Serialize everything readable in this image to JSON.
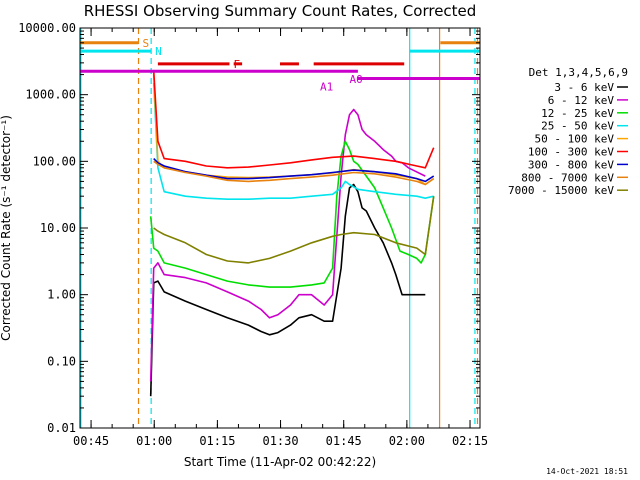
{
  "chart_data": {
    "type": "line",
    "title": "RHESSI Observing Summary Count Rates, Corrected",
    "xlabel": "Start Time (11-Apr-02 00:42:22)",
    "ylabel": "Corrected Count Rate (s⁻¹ detector⁻¹)",
    "yscale": "log",
    "ylim": [
      0.01,
      10000
    ],
    "xlim_minutes_since_start": [
      0,
      95
    ],
    "x_ticks": [
      {
        "label": "00:45",
        "m": 2.63
      },
      {
        "label": "01:00",
        "m": 17.63
      },
      {
        "label": "01:15",
        "m": 32.63
      },
      {
        "label": "01:30",
        "m": 47.63
      },
      {
        "label": "01:45",
        "m": 62.63
      },
      {
        "label": "02:00",
        "m": 77.63
      },
      {
        "label": "02:15",
        "m": 92.63
      }
    ],
    "y_ticks": [
      {
        "label": "0.01",
        "v": 0.01
      },
      {
        "label": "0.10",
        "v": 0.1
      },
      {
        "label": "1.00",
        "v": 1
      },
      {
        "label": "10.00",
        "v": 10
      },
      {
        "label": "100.00",
        "v": 100
      },
      {
        "label": "1000.00",
        "v": 1000
      },
      {
        "label": "10000.00",
        "v": 10000
      }
    ],
    "legend_title": "Det 1,3,4,5,6,9",
    "legend_position": "right",
    "series": [
      {
        "name": "3 - 6 keV",
        "color": "#000000",
        "x": [
          16.8,
          17.5,
          18.5,
          20,
          25,
          30,
          35,
          40,
          43,
          45,
          47,
          50,
          52,
          55,
          58,
          60,
          62,
          63,
          64,
          65,
          66,
          67,
          68,
          70,
          72,
          74,
          75,
          76.5,
          78,
          82
        ],
        "y": [
          0.03,
          1.5,
          1.6,
          1.1,
          0.8,
          0.6,
          0.45,
          0.35,
          0.28,
          0.25,
          0.27,
          0.35,
          0.45,
          0.5,
          0.4,
          0.4,
          2.5,
          15,
          40,
          45,
          35,
          20,
          18,
          10,
          6,
          3,
          2,
          1,
          1,
          1
        ]
      },
      {
        "name": "6 - 12 keV",
        "color": "#cc00cc",
        "x": [
          16.8,
          17.5,
          18.5,
          20,
          25,
          30,
          35,
          40,
          43,
          45,
          47,
          50,
          52,
          55,
          58,
          60,
          62,
          63,
          64,
          65,
          66,
          67,
          68,
          70,
          72,
          74,
          75,
          76.5,
          78,
          82
        ],
        "y": [
          0.05,
          2.5,
          3.0,
          2.0,
          1.8,
          1.5,
          1.1,
          0.8,
          0.6,
          0.45,
          0.5,
          0.7,
          1.0,
          1.0,
          0.7,
          1.0,
          60,
          250,
          500,
          600,
          500,
          300,
          250,
          200,
          150,
          120,
          100,
          95,
          80,
          60
        ]
      },
      {
        "name": "12 - 25 keV",
        "color": "#00dd00",
        "x": [
          16.8,
          17.5,
          18.5,
          20,
          25,
          30,
          35,
          40,
          45,
          50,
          55,
          58,
          60,
          61,
          62,
          63,
          64,
          65,
          66,
          68,
          70,
          72,
          74,
          76,
          78,
          80,
          81,
          82,
          84
        ],
        "y": [
          15,
          5,
          4.5,
          3.0,
          2.5,
          2.0,
          1.6,
          1.4,
          1.3,
          1.3,
          1.4,
          1.5,
          2.5,
          30,
          120,
          200,
          150,
          100,
          90,
          60,
          40,
          20,
          10,
          4.5,
          4,
          3.5,
          3,
          4,
          30
        ]
      },
      {
        "name": "25 - 50 keV",
        "color": "#00e5ee",
        "x": [
          17.5,
          18.5,
          20,
          25,
          30,
          35,
          40,
          45,
          50,
          55,
          60,
          62,
          63,
          64,
          66,
          70,
          75,
          80,
          82,
          84
        ],
        "y": [
          1500,
          80,
          35,
          30,
          28,
          27,
          27,
          28,
          28,
          30,
          32,
          40,
          50,
          45,
          38,
          35,
          32,
          30,
          28,
          30
        ]
      },
      {
        "name": "50 - 100 keV",
        "color": "#ffa500",
        "x": [
          17.5,
          18.5,
          20,
          25,
          30,
          35,
          40,
          45,
          50,
          55,
          60,
          65,
          70,
          75,
          80,
          82,
          84
        ],
        "y": [
          2000,
          100,
          80,
          70,
          62,
          58,
          57,
          58,
          60,
          63,
          67,
          75,
          70,
          62,
          55,
          45,
          55
        ]
      },
      {
        "name": "100 - 300 keV",
        "color": "#ff0000",
        "x": [
          17.5,
          18.5,
          20,
          25,
          30,
          35,
          40,
          45,
          50,
          55,
          60,
          65,
          70,
          75,
          80,
          82,
          84
        ],
        "y": [
          2300,
          200,
          110,
          100,
          85,
          80,
          82,
          88,
          95,
          105,
          115,
          120,
          110,
          100,
          85,
          80,
          160
        ]
      },
      {
        "name": "300 - 800 keV",
        "color": "#0000cc",
        "x": [
          17.5,
          18.5,
          20,
          25,
          30,
          35,
          40,
          45,
          50,
          55,
          60,
          65,
          70,
          75,
          80,
          82,
          84
        ],
        "y": [
          110,
          95,
          85,
          70,
          62,
          55,
          55,
          57,
          60,
          63,
          68,
          74,
          70,
          65,
          55,
          50,
          60
        ]
      },
      {
        "name": "800 - 7000 keV",
        "color": "#e8820e",
        "x": [
          17.5,
          18.5,
          20,
          25,
          30,
          35,
          40,
          45,
          50,
          55,
          60,
          65,
          70,
          75,
          80,
          82,
          84
        ],
        "y": [
          100,
          90,
          80,
          68,
          60,
          52,
          50,
          52,
          55,
          58,
          62,
          68,
          65,
          58,
          50,
          45,
          55
        ]
      },
      {
        "name": "7000 - 15000 keV",
        "color": "#808000",
        "x": [
          17.5,
          18.5,
          20,
          25,
          30,
          35,
          40,
          45,
          50,
          55,
          60,
          62,
          65,
          70,
          75,
          80,
          82,
          84
        ],
        "y": [
          10,
          9,
          8,
          6,
          4,
          3.2,
          3.0,
          3.5,
          4.5,
          6,
          7.5,
          8,
          8.5,
          8,
          6,
          5,
          4,
          30
        ]
      }
    ],
    "vertical_markers": [
      {
        "m": 0.2,
        "color": "#00e5ee",
        "style": "solid"
      },
      {
        "m": 13.9,
        "color": "#e8820e",
        "style": "dashed"
      },
      {
        "m": 16.9,
        "color": "#00e5ee",
        "style": "dashed"
      },
      {
        "m": 78.3,
        "color": "#00e5ee",
        "style": "solid"
      },
      {
        "m": 85.4,
        "color": "#e8820e",
        "style": "solid"
      },
      {
        "m": 93.8,
        "color": "#00e5ee",
        "style": "dashed"
      },
      {
        "m": 94.4,
        "color": "#e8820e",
        "style": "dashed"
      }
    ],
    "flag_bars": [
      {
        "label": "S",
        "color": "#e8820e",
        "v": 6000,
        "segments": [
          [
            0,
            13.9
          ],
          [
            85.6,
            95
          ]
        ]
      },
      {
        "label": "N",
        "color": "#00e5ee",
        "v": 4500,
        "segments": [
          [
            0,
            16.9
          ],
          [
            78.3,
            95
          ]
        ]
      },
      {
        "label": "F",
        "color": "#dd0000",
        "v": 2900,
        "segments": [
          [
            18.5,
            35.5
          ],
          [
            36.5,
            38.5
          ],
          [
            47.5,
            52
          ],
          [
            55.5,
            77
          ]
        ]
      },
      {
        "label": "A0",
        "color": "#cc00cc",
        "v": 2250,
        "segments": [
          [
            0,
            66
          ]
        ]
      },
      {
        "label": "A1",
        "color": "#cc00cc",
        "v": 1750,
        "segments": [
          [
            66,
            95
          ]
        ]
      }
    ]
  },
  "footer_date": "14-Oct-2021 18:51"
}
